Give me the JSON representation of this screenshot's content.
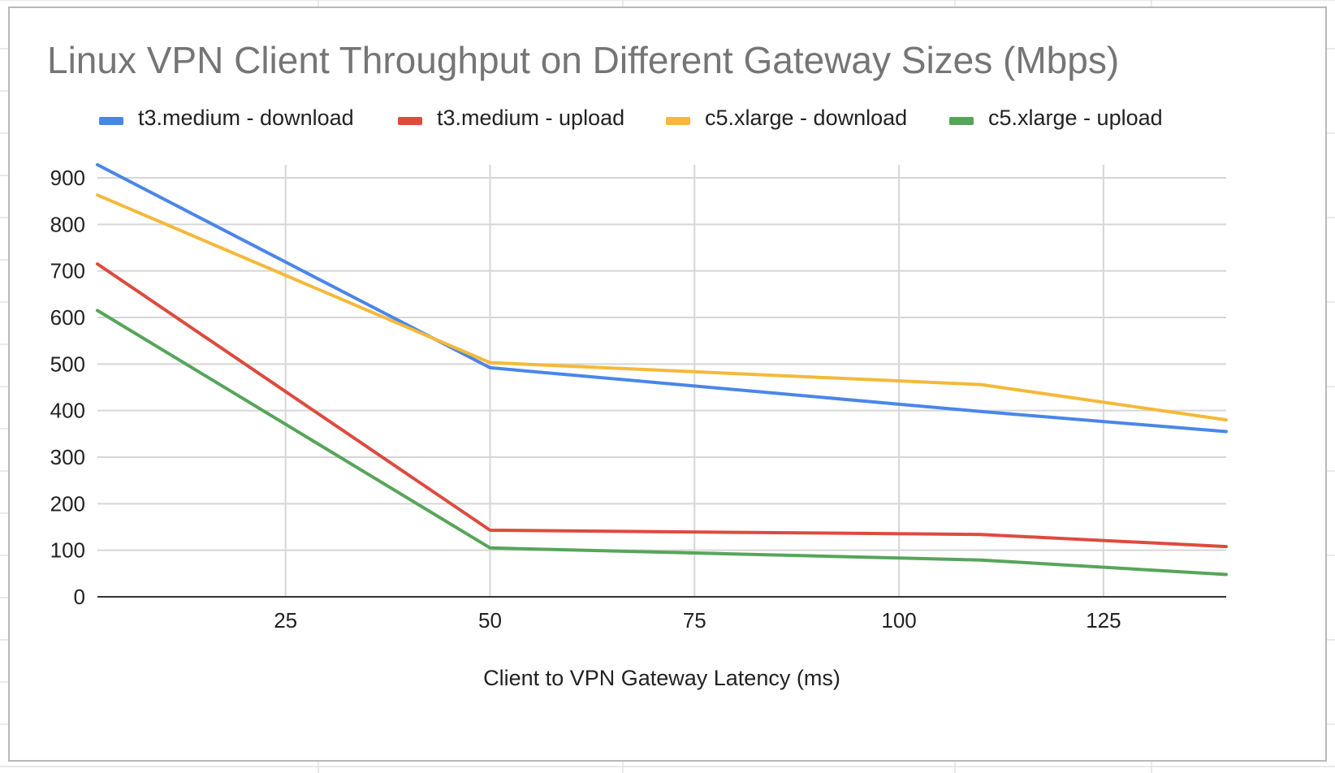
{
  "colors": {
    "grid": "#d6d6d6",
    "baseline": "#333333",
    "sheet_lines": "#e2e2e2"
  },
  "chart_data": {
    "type": "line",
    "title": "Linux VPN Client Throughput on Different Gateway Sizes (Mbps)",
    "xlabel": "Client to VPN Gateway Latency (ms)",
    "ylabel": "",
    "xlim": [
      2,
      140
    ],
    "ylim": [
      0,
      900
    ],
    "xticks": [
      25,
      50,
      75,
      100,
      125
    ],
    "yticks": [
      0,
      100,
      200,
      300,
      400,
      500,
      600,
      700,
      800,
      900
    ],
    "grid": true,
    "legend": "top",
    "series": [
      {
        "name": "t3.medium - download",
        "color": "#4a86e8",
        "x": [
          2,
          50,
          110,
          140
        ],
        "values": [
          928,
          492,
          398,
          355
        ]
      },
      {
        "name": "t3.medium - upload",
        "color": "#dd4b3e",
        "x": [
          2,
          50,
          110,
          140
        ],
        "values": [
          715,
          143,
          134,
          108
        ]
      },
      {
        "name": "c5.xlarge - download",
        "color": "#f4b93a",
        "x": [
          2,
          50,
          110,
          140
        ],
        "values": [
          863,
          503,
          456,
          380
        ]
      },
      {
        "name": "c5.xlarge - upload",
        "color": "#57a55a",
        "x": [
          2,
          50,
          110,
          140
        ],
        "values": [
          615,
          105,
          79,
          48
        ]
      }
    ]
  }
}
